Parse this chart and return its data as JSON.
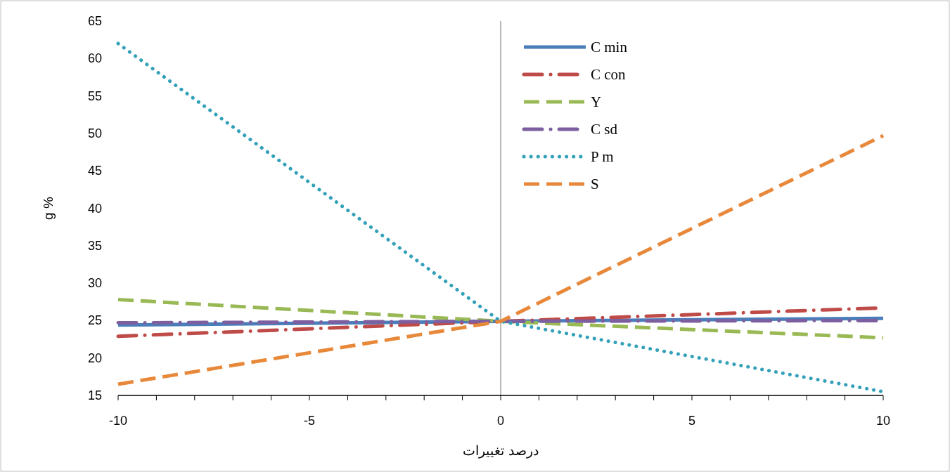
{
  "chart_data": {
    "type": "line",
    "ylabel": "g %",
    "xlabel": "درصد تغییرات",
    "legend": "top right",
    "xlim": [
      -10,
      10
    ],
    "ylim": [
      15,
      65
    ],
    "xticks": [
      -10,
      {
        "value": -9,
        "label": null
      },
      {
        "value": -8,
        "label": null
      },
      {
        "value": -7,
        "label": null
      },
      {
        "value": -6,
        "label": null
      },
      -5,
      {
        "value": -4,
        "label": null
      },
      {
        "value": -3,
        "label": null
      },
      {
        "value": -2,
        "label": null
      },
      {
        "value": -1,
        "label": null
      },
      0,
      {
        "value": 1,
        "label": null
      },
      {
        "value": 2,
        "label": null
      },
      {
        "value": 3,
        "label": null
      },
      {
        "value": 4,
        "label": null
      },
      5,
      {
        "value": 6,
        "label": null
      },
      {
        "value": 7,
        "label": null
      },
      {
        "value": 8,
        "label": null
      },
      {
        "value": 9,
        "label": null
      },
      10
    ],
    "yticks": [
      15,
      20,
      25,
      30,
      35,
      40,
      45,
      50,
      55,
      60,
      65
    ],
    "ref_lines": [
      {
        "axis": "x",
        "value": 0,
        "color": "#a0a0a0"
      }
    ],
    "x": [
      -10,
      0,
      10
    ],
    "series": [
      {
        "name": "C min",
        "color": "#4a7ebb",
        "line_style": "solid",
        "values": [
          24.4,
          24.9,
          25.3
        ]
      },
      {
        "name": "C con",
        "color": "#be4b48",
        "line_style": "dashdot",
        "values": [
          22.9,
          24.9,
          26.7
        ]
      },
      {
        "name": "Y",
        "color": "#98b954",
        "line_style": "dashed",
        "values": [
          27.8,
          24.9,
          22.7
        ]
      },
      {
        "name": "C sd",
        "color": "#7d5fa0",
        "line_style": "dashdot",
        "values": [
          24.7,
          24.9,
          25.0
        ]
      },
      {
        "name": "P m",
        "color": "#31a0b8",
        "line_style": "dotted",
        "values": [
          62,
          24.9,
          15.5
        ]
      },
      {
        "name": "S",
        "color": "#e8883a",
        "line_style": "dashed",
        "values": [
          16.5,
          24.9,
          49.7
        ]
      }
    ]
  }
}
